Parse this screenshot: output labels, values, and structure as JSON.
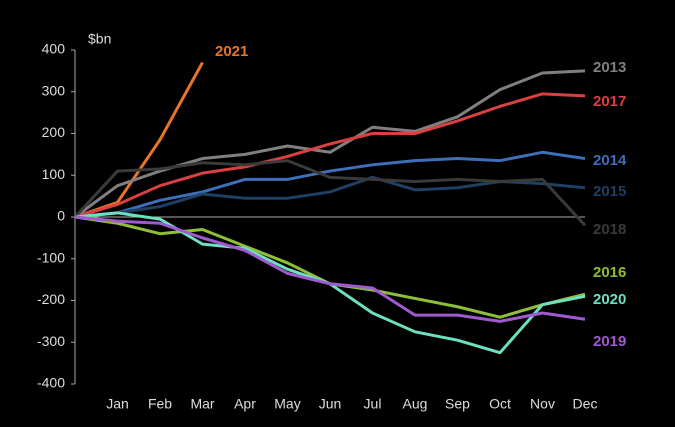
{
  "chart_data": {
    "type": "line",
    "y_label": "$bn",
    "categories": [
      null,
      "Jan",
      "Feb",
      "Mar",
      "Apr",
      "May",
      "Jun",
      "Jul",
      "Aug",
      "Sep",
      "Oct",
      "Nov",
      "Dec"
    ],
    "ylim": [
      -400,
      400
    ],
    "yticks": [
      -400,
      -300,
      -200,
      -100,
      0,
      100,
      200,
      300,
      400
    ],
    "series": [
      {
        "name": "2021",
        "color": "#e8742a",
        "values": [
          0,
          35,
          185,
          370,
          null,
          null,
          null,
          null,
          null,
          null,
          null,
          null,
          null
        ]
      },
      {
        "name": "2013",
        "color": "#808080",
        "values": [
          0,
          75,
          110,
          140,
          150,
          170,
          155,
          215,
          205,
          240,
          305,
          345,
          350
        ]
      },
      {
        "name": "2017",
        "color": "#d9403f",
        "values": [
          0,
          30,
          75,
          105,
          120,
          145,
          175,
          200,
          200,
          230,
          265,
          295,
          290
        ]
      },
      {
        "name": "2014",
        "color": "#3e6fb8",
        "values": [
          0,
          10,
          40,
          60,
          90,
          90,
          110,
          125,
          135,
          140,
          135,
          155,
          140
        ]
      },
      {
        "name": "2015",
        "color": "#1f3f63",
        "values": [
          0,
          10,
          25,
          55,
          45,
          45,
          60,
          95,
          65,
          70,
          85,
          80,
          70
        ]
      },
      {
        "name": "2018",
        "color": "#3a3a3a",
        "values": [
          0,
          110,
          115,
          130,
          125,
          135,
          95,
          90,
          85,
          90,
          85,
          90,
          -20
        ]
      },
      {
        "name": "2016",
        "color": "#8fbf3a",
        "values": [
          0,
          -15,
          -40,
          -30,
          -70,
          -110,
          -160,
          -175,
          -195,
          -215,
          -240,
          -210,
          -185
        ]
      },
      {
        "name": "2020",
        "color": "#6de0c0",
        "values": [
          0,
          10,
          -5,
          -65,
          -75,
          -125,
          -160,
          -230,
          -275,
          -295,
          -325,
          -210,
          -190
        ]
      },
      {
        "name": "2019",
        "color": "#a05ad0",
        "values": [
          0,
          -10,
          -15,
          -50,
          -80,
          -135,
          -160,
          -170,
          -235,
          -235,
          -250,
          -230,
          -245
        ]
      }
    ]
  }
}
